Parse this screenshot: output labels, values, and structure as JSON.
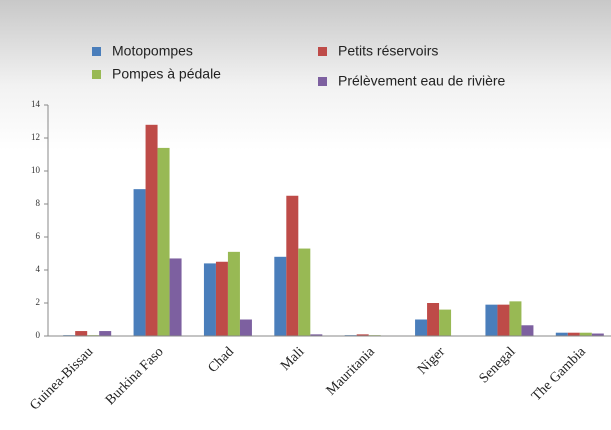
{
  "chart_data": {
    "type": "bar",
    "categories": [
      "Guinea-Bissau",
      "Burkina Faso",
      "Chad",
      "Mali",
      "Mauritania",
      "Niger",
      "Senegal",
      "The Gambia"
    ],
    "series": [
      {
        "name": "Motopompes",
        "color": "#4a7ebb",
        "values": [
          0.05,
          8.9,
          4.4,
          4.8,
          0.05,
          1.0,
          1.9,
          0.2
        ]
      },
      {
        "name": "Petits réservoirs",
        "color": "#be4b48",
        "values": [
          0.3,
          12.8,
          4.5,
          8.5,
          0.1,
          2.0,
          1.9,
          0.2
        ]
      },
      {
        "name": "Pompes à pédale",
        "color": "#98b954",
        "values": [
          0.05,
          11.4,
          5.1,
          5.3,
          0.05,
          1.6,
          2.1,
          0.2
        ]
      },
      {
        "name": "Prélèvement eau de rivière",
        "color": "#7d60a0",
        "values": [
          0.3,
          4.7,
          1.0,
          0.1,
          0,
          0,
          0.65,
          0.15
        ]
      }
    ],
    "ylim": [
      0,
      14
    ],
    "yticks": [
      0,
      2,
      4,
      6,
      8,
      10,
      12,
      14
    ],
    "grid": false
  }
}
